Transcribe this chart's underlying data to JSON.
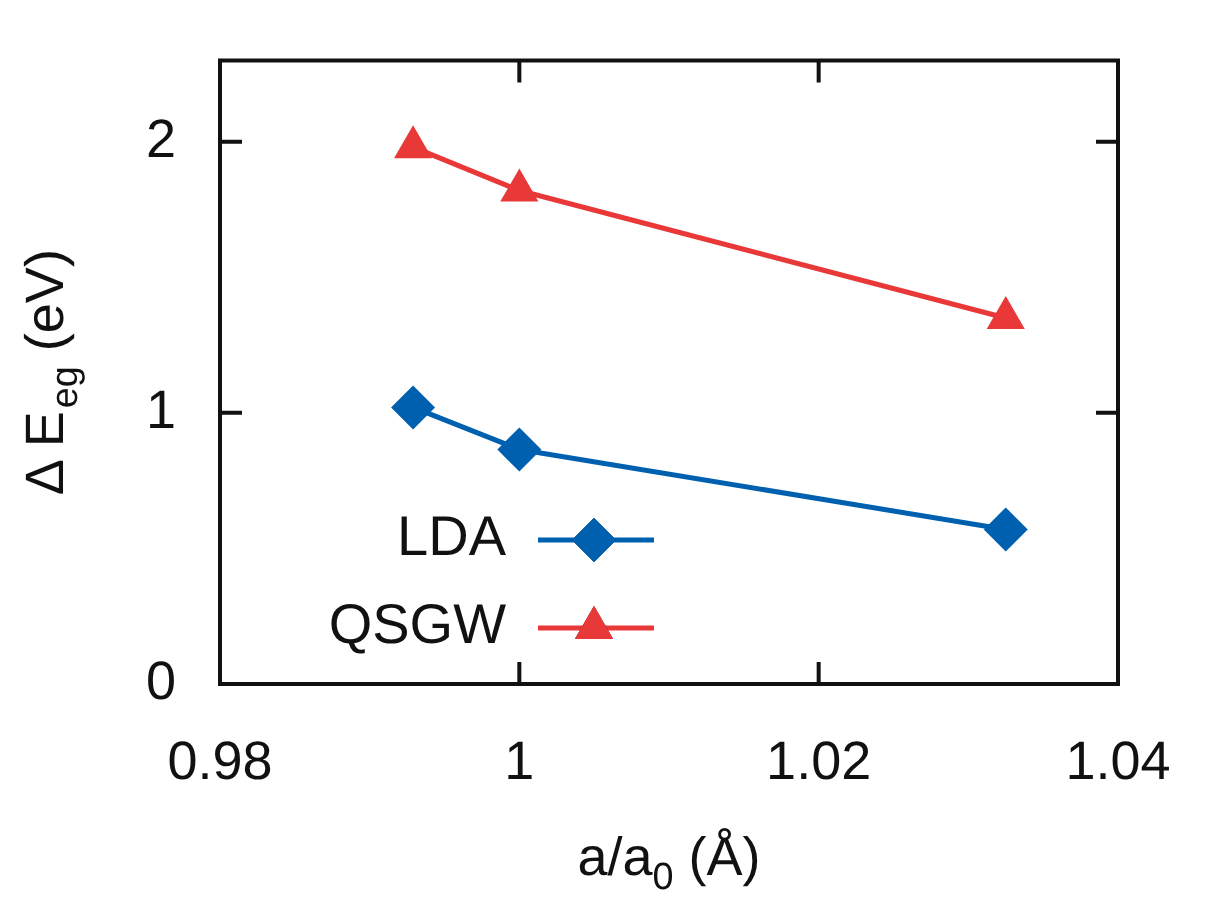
{
  "chart_data": {
    "type": "line",
    "xlabel": "a/a$_{0}$ (Å)",
    "ylabel": "Δ E$_{eg}$ (eV)",
    "xlim": [
      0.98,
      1.04
    ],
    "xticks": [
      0.98,
      1,
      1.02,
      1.04
    ],
    "ylim": [
      0,
      2.3
    ],
    "yticks": [
      0,
      1,
      2
    ],
    "grid": false,
    "legend": "bottom left",
    "line_style": "solid",
    "series": [
      {
        "name": "LDA",
        "color": "#0060b0",
        "marker": "diamond",
        "x": [
          0.9929,
          1.0,
          1.0325
        ],
        "values": [
          1.02,
          0.865,
          0.57
        ]
      },
      {
        "name": "QSGW",
        "color": "#e83838",
        "marker": "triangle",
        "x": [
          0.9929,
          1.0,
          1.0325
        ],
        "values": [
          1.98,
          1.82,
          1.35
        ]
      }
    ]
  }
}
